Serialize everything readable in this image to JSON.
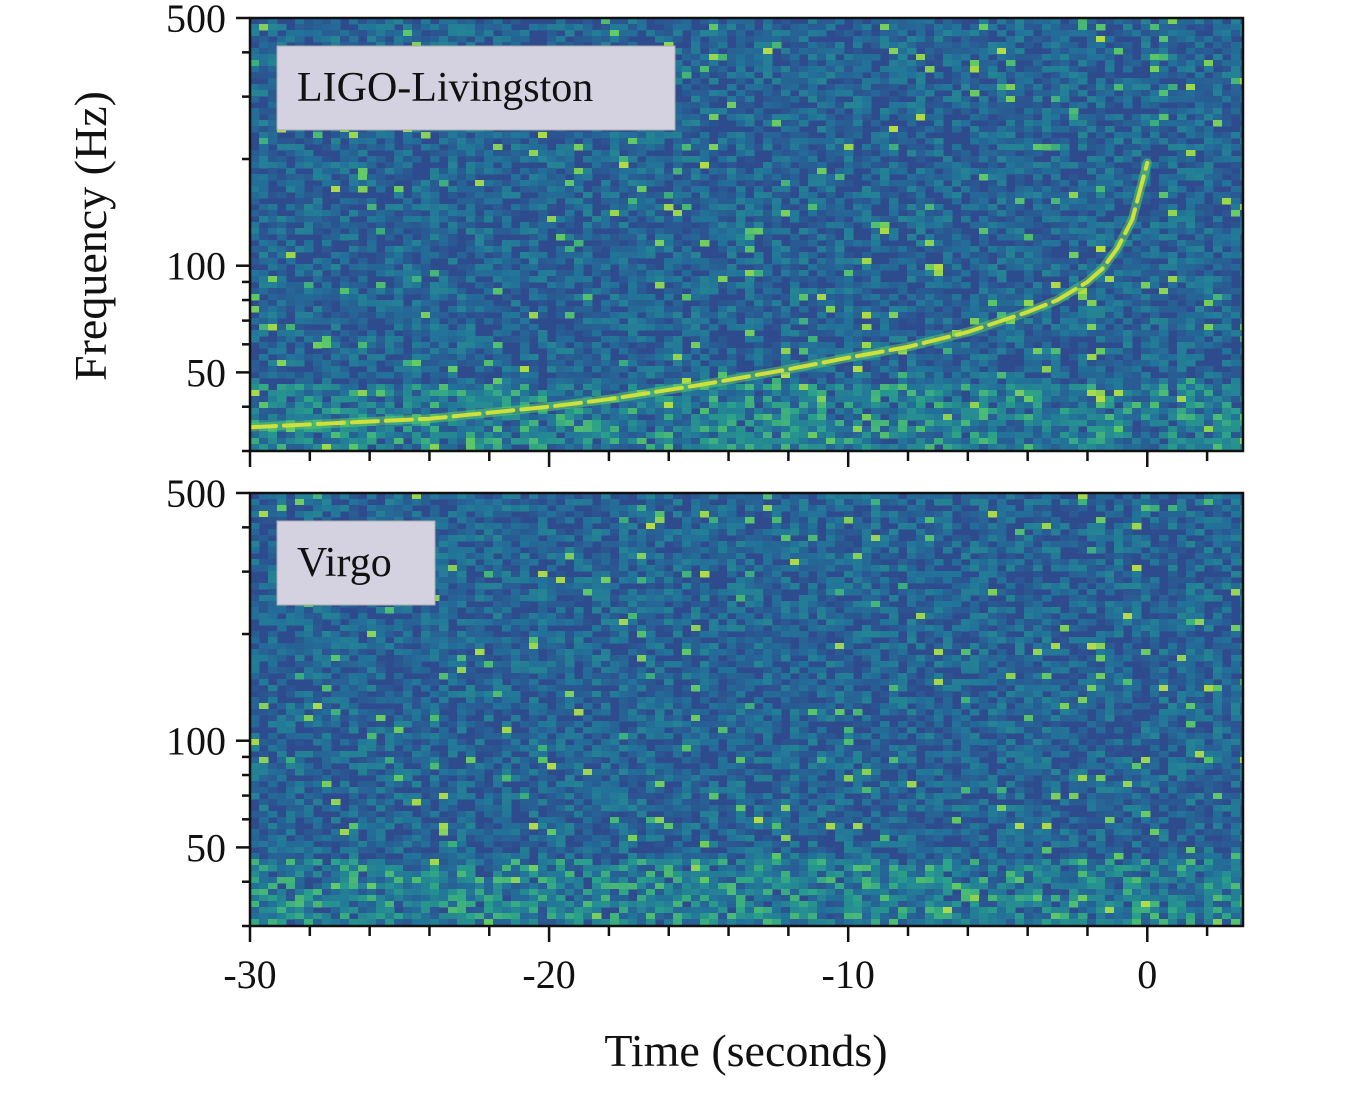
{
  "chart_data": [
    {
      "type": "heatmap",
      "panel_label": "LIGO-Livingston",
      "ylabel": "Frequency (Hz)",
      "yscale": "log",
      "ylim": [
        30,
        500
      ],
      "yticks": [
        {
          "value": 500,
          "label": "500"
        },
        {
          "value": 100,
          "label": "100"
        },
        {
          "value": 50,
          "label": "50"
        }
      ],
      "xlim": [
        -30,
        3.2
      ],
      "signal_track": {
        "time": [
          -30,
          -24,
          -20,
          -18,
          -15,
          -12,
          -10,
          -8,
          -6,
          -4,
          -3,
          -2,
          -1.5,
          -1,
          -0.5,
          0
        ],
        "frequency": [
          35,
          37,
          40,
          42,
          46,
          51,
          55,
          59,
          65,
          74,
          80,
          90,
          98,
          112,
          135,
          195
        ]
      },
      "colormap": [
        "#2a1a6b",
        "#2e4b8e",
        "#22739a",
        "#29a08b",
        "#5ec967",
        "#cde03c",
        "#f4ef22"
      ]
    },
    {
      "type": "heatmap",
      "panel_label": "Virgo",
      "yscale": "log",
      "ylim": [
        30,
        500
      ],
      "yticks": [
        {
          "value": 500,
          "label": "500"
        },
        {
          "value": 100,
          "label": "100"
        },
        {
          "value": 50,
          "label": "50"
        }
      ],
      "xlim": [
        -30,
        3.2
      ],
      "xlabel": "Time (seconds)",
      "xticks": [
        {
          "value": -30,
          "label": "-30"
        },
        {
          "value": -20,
          "label": "-20"
        },
        {
          "value": -10,
          "label": "-10"
        },
        {
          "value": 0,
          "label": "0"
        }
      ],
      "colormap": [
        "#2a1a6b",
        "#2e4b8e",
        "#22739a",
        "#29a08b",
        "#5ec967",
        "#cde03c",
        "#f4ef22"
      ]
    }
  ]
}
